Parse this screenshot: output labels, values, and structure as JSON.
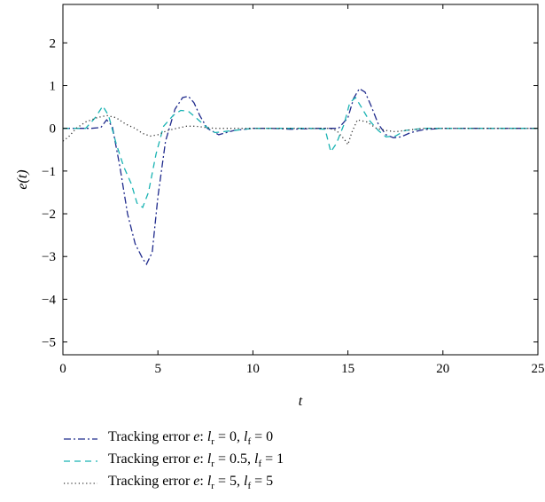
{
  "chart_data": {
    "type": "line",
    "title": "",
    "xlabel": "t",
    "ylabel": "e(t)",
    "xlim": [
      0,
      25
    ],
    "ylim": [
      -5.3,
      2.9
    ],
    "xticks": [
      0,
      5,
      10,
      15,
      20,
      25
    ],
    "yticks": [
      -5,
      -4,
      -3,
      -2,
      -1,
      0,
      1,
      2
    ],
    "xtick_labels": [
      "0",
      "5",
      "10",
      "15",
      "20",
      "25"
    ],
    "ytick_labels": [
      "−5",
      "−4",
      "−3",
      "−2",
      "−1",
      "0",
      "1",
      "2"
    ],
    "grid": false,
    "legend_position": "below",
    "series": [
      {
        "name": "Tracking error e: l_r = 0, l_f = 0",
        "legend_label": {
          "prefix": "Tracking error ",
          "e": "e",
          "l": "l",
          "r": "r",
          "f": "f",
          "eq1": " = 0, ",
          "eq2": " = 0"
        },
        "color": "#1f2a8c",
        "dash": "8,3,2,3",
        "x": [
          0,
          1.5,
          2.0,
          2.3,
          2.6,
          3.0,
          3.4,
          3.8,
          4.2,
          4.4,
          4.7,
          5.0,
          5.4,
          5.9,
          6.3,
          6.6,
          6.9,
          7.2,
          7.6,
          8.2,
          9.0,
          10,
          11,
          12,
          13.5,
          14.5,
          15.0,
          15.3,
          15.6,
          15.9,
          16.2,
          16.6,
          17.0,
          17.4,
          17.8,
          18.3,
          19,
          20,
          21,
          22,
          23,
          24,
          25
        ],
        "y": [
          0,
          0,
          0.02,
          0.2,
          0.05,
          -0.9,
          -2.0,
          -2.7,
          -3.05,
          -3.18,
          -2.9,
          -1.6,
          -0.3,
          0.45,
          0.72,
          0.75,
          0.6,
          0.3,
          0.0,
          -0.15,
          -0.05,
          0.0,
          0.0,
          -0.02,
          0.0,
          0.0,
          0.25,
          0.7,
          0.93,
          0.85,
          0.55,
          0.1,
          -0.15,
          -0.22,
          -0.2,
          -0.1,
          -0.03,
          0.0,
          0.0,
          0.0,
          0.0,
          0.0,
          0.0
        ]
      },
      {
        "name": "Tracking error e: l_r = 0.5, l_f = 1",
        "legend_label": {
          "prefix": "Tracking error ",
          "e": "e",
          "l": "l",
          "r": "r",
          "f": "f",
          "eq1": " = 0.5, ",
          "eq2": " = 1"
        },
        "color": "#19b3b3",
        "dash": "7,5",
        "x": [
          0,
          1.2,
          1.7,
          2.1,
          2.4,
          2.8,
          3.2,
          3.6,
          3.9,
          4.2,
          4.5,
          4.9,
          5.3,
          5.8,
          6.2,
          6.6,
          7.0,
          7.5,
          8.0,
          9.0,
          10,
          11,
          12,
          13,
          13.8,
          14.1,
          14.4,
          14.8,
          15.1,
          15.4,
          15.7,
          16.1,
          16.6,
          17.0,
          17.5,
          18.0,
          19,
          20,
          21,
          22,
          23,
          24,
          25
        ],
        "y": [
          0,
          0,
          0.25,
          0.52,
          0.3,
          -0.35,
          -0.9,
          -1.3,
          -1.75,
          -1.85,
          -1.5,
          -0.6,
          0.05,
          0.3,
          0.42,
          0.4,
          0.25,
          0.05,
          -0.1,
          -0.05,
          0.0,
          0.0,
          0.0,
          0.0,
          -0.02,
          -0.55,
          -0.35,
          0.1,
          0.6,
          0.72,
          0.5,
          0.2,
          -0.05,
          -0.2,
          -0.18,
          -0.05,
          0.0,
          0.0,
          0.0,
          0.0,
          0.0,
          0.0,
          0.0
        ]
      },
      {
        "name": "Tracking error e: l_r = 5, l_f = 5",
        "legend_label": {
          "prefix": "Tracking error ",
          "e": "e",
          "l": "l",
          "r": "r",
          "f": "f",
          "eq1": " = 5, ",
          "eq2": " = 5"
        },
        "color": "#333333",
        "dash": "1.2,3",
        "x": [
          0,
          0.3,
          0.7,
          1.2,
          1.8,
          2.3,
          2.8,
          3.3,
          3.8,
          4.2,
          4.6,
          5.0,
          5.5,
          6.0,
          6.5,
          7.0,
          7.5,
          8.0,
          9.0,
          10,
          11,
          12,
          13,
          14.0,
          14.4,
          14.8,
          15.0,
          15.2,
          15.5,
          16.0,
          16.5,
          17.0,
          17.5,
          18.0,
          19,
          20,
          21,
          22,
          23,
          24,
          25
        ],
        "y": [
          -0.3,
          -0.2,
          0.0,
          0.15,
          0.25,
          0.3,
          0.25,
          0.1,
          0.0,
          -0.12,
          -0.18,
          -0.15,
          -0.05,
          0.0,
          0.05,
          0.05,
          0.02,
          0.0,
          0.0,
          0.0,
          0.0,
          0.0,
          0.0,
          0.0,
          -0.05,
          -0.25,
          -0.38,
          -0.1,
          0.2,
          0.15,
          0.0,
          -0.05,
          -0.08,
          -0.05,
          0.0,
          0.0,
          0.0,
          0.0,
          0.0,
          0.0,
          0.0
        ]
      }
    ]
  }
}
